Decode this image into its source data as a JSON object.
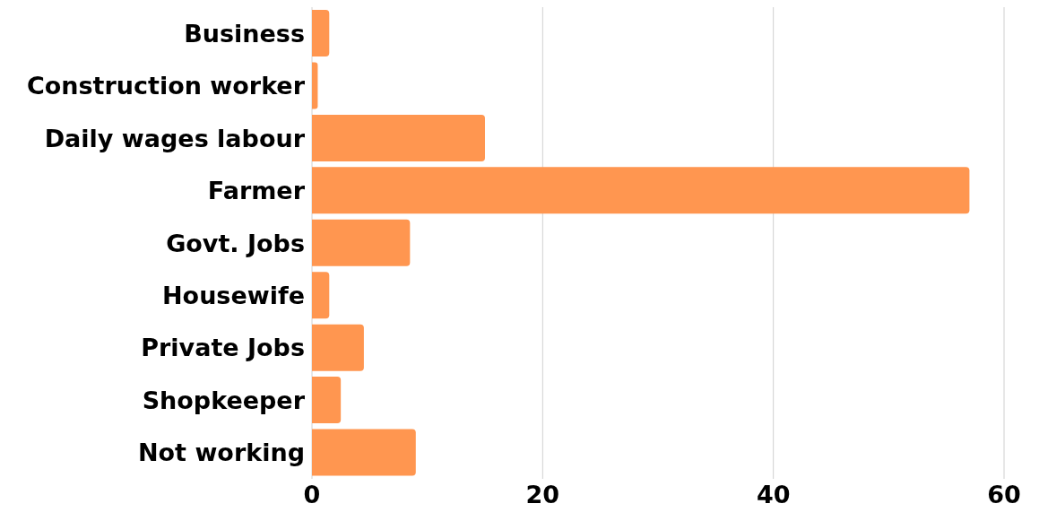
{
  "chart_data": {
    "type": "bar",
    "orientation": "horizontal",
    "categories": [
      "Business",
      "Construction worker",
      "Daily wages labour",
      "Farmer",
      "Govt. Jobs",
      "Housewife",
      "Private Jobs",
      "Shopkeeper",
      "Not working"
    ],
    "values": [
      1.5,
      0.5,
      15,
      57,
      8.5,
      1.5,
      4.5,
      2.5,
      9
    ],
    "color": "#ff9650",
    "xlim": [
      0,
      60
    ],
    "xticks": [
      0,
      20,
      40,
      60
    ],
    "grid": "x",
    "legend": false
  }
}
